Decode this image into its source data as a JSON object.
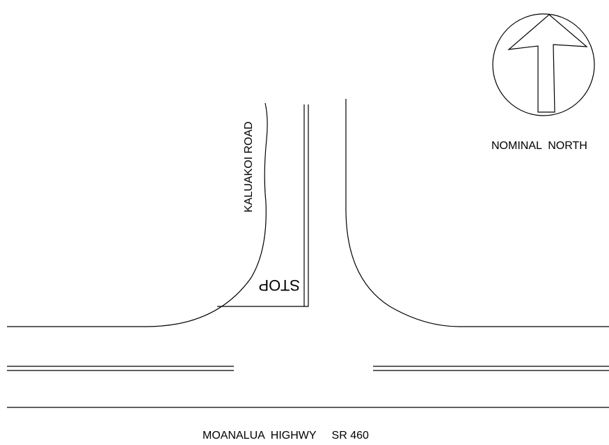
{
  "labels": {
    "road": "KALUAKOI ROAD",
    "stop": "STOP",
    "north": "NOMINAL  NORTH",
    "highway": "MOANALUA  HIGHWY     SR 460"
  }
}
